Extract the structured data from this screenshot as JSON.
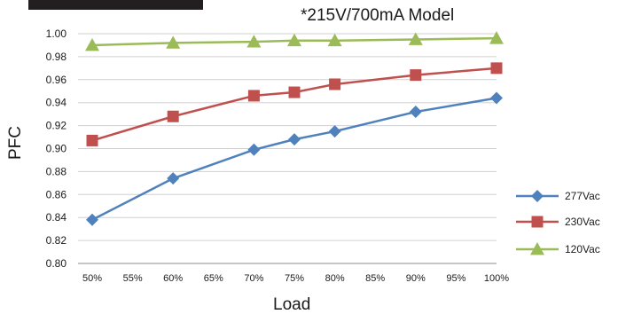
{
  "chart_data": {
    "type": "line",
    "title": "*215V/700mA Model",
    "xlabel": "Load",
    "ylabel": "PFC",
    "x_categories": [
      "50%",
      "55%",
      "60%",
      "65%",
      "70%",
      "75%",
      "80%",
      "85%",
      "90%",
      "95%",
      "100%"
    ],
    "y_ticks": [
      "0.80",
      "0.82",
      "0.84",
      "0.86",
      "0.88",
      "0.90",
      "0.92",
      "0.94",
      "0.96",
      "0.98",
      "1.00"
    ],
    "ylim": [
      0.8,
      1.0
    ],
    "grid": true,
    "legend_position": "right",
    "series": [
      {
        "name": "277Vac",
        "color": "#4f81bd",
        "marker": "diamond",
        "x": [
          "50%",
          "60%",
          "70%",
          "75%",
          "80%",
          "90%",
          "100%"
        ],
        "values": [
          0.838,
          0.874,
          0.899,
          0.908,
          0.915,
          0.932,
          0.944
        ]
      },
      {
        "name": "230Vac",
        "color": "#c0504d",
        "marker": "square",
        "x": [
          "50%",
          "60%",
          "70%",
          "75%",
          "80%",
          "90%",
          "100%"
        ],
        "values": [
          0.907,
          0.928,
          0.946,
          0.949,
          0.956,
          0.964,
          0.97
        ]
      },
      {
        "name": "120Vac",
        "color": "#9bbb59",
        "marker": "triangle",
        "x": [
          "50%",
          "60%",
          "70%",
          "75%",
          "80%",
          "90%",
          "100%"
        ],
        "values": [
          0.99,
          0.992,
          0.993,
          0.994,
          0.994,
          0.995,
          0.996
        ]
      }
    ]
  }
}
